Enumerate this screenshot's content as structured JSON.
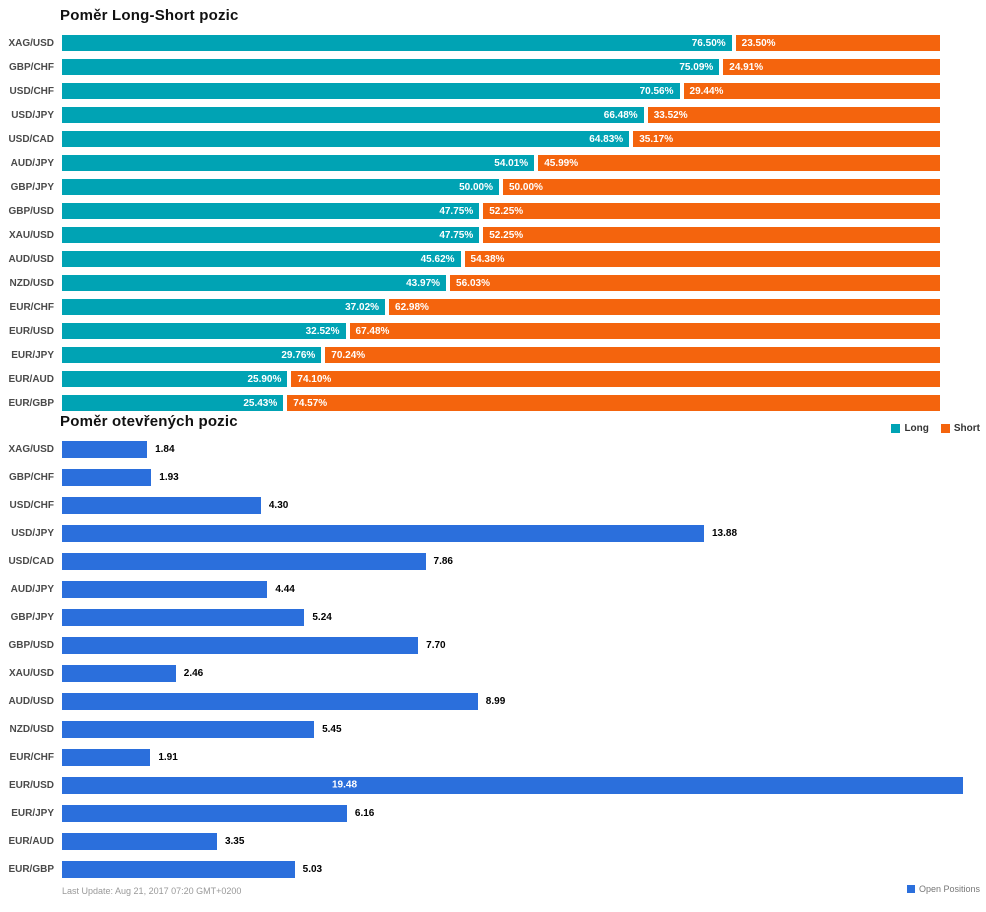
{
  "page": {
    "footer": "Last Update: Aug 21, 2017 07:20 GMT+0200"
  },
  "colors": {
    "long": "#00A3B4",
    "short": "#F4640D",
    "open_positions": "#2B6FDC"
  },
  "chart_data": [
    {
      "type": "bar",
      "title": "Poměr Long-Short pozic",
      "stacked": true,
      "unit": "%",
      "xlim": [
        0,
        100
      ],
      "grid": false,
      "legend_position": "bottom-right",
      "categories": [
        "XAG/USD",
        "GBP/CHF",
        "USD/CHF",
        "USD/JPY",
        "USD/CAD",
        "AUD/JPY",
        "GBP/JPY",
        "GBP/USD",
        "XAU/USD",
        "AUD/USD",
        "NZD/USD",
        "EUR/CHF",
        "EUR/USD",
        "EUR/JPY",
        "EUR/AUD",
        "EUR/GBP"
      ],
      "series": [
        {
          "name": "Long",
          "color_key": "long",
          "values": [
            76.5,
            75.09,
            70.56,
            66.48,
            64.83,
            54.01,
            50.0,
            47.75,
            47.75,
            45.62,
            43.97,
            37.02,
            32.52,
            29.76,
            25.9,
            25.43
          ]
        },
        {
          "name": "Short",
          "color_key": "short",
          "values": [
            23.5,
            24.91,
            29.44,
            33.52,
            35.17,
            45.99,
            50.0,
            52.25,
            52.25,
            54.38,
            56.03,
            62.98,
            67.48,
            70.24,
            74.1,
            74.57
          ]
        }
      ]
    },
    {
      "type": "bar",
      "title": "Poměr otevřených pozic",
      "stacked": false,
      "xlim": [
        0,
        19.48
      ],
      "grid": false,
      "legend_position": "bottom-right",
      "categories": [
        "XAG/USD",
        "GBP/CHF",
        "USD/CHF",
        "USD/JPY",
        "USD/CAD",
        "AUD/JPY",
        "GBP/JPY",
        "GBP/USD",
        "XAU/USD",
        "AUD/USD",
        "NZD/USD",
        "EUR/CHF",
        "EUR/USD",
        "EUR/JPY",
        "EUR/AUD",
        "EUR/GBP"
      ],
      "series": [
        {
          "name": "Open Positions",
          "color_key": "open_positions",
          "values": [
            1.84,
            1.93,
            4.3,
            13.88,
            7.86,
            4.44,
            5.24,
            7.7,
            2.46,
            8.99,
            5.45,
            1.91,
            19.48,
            6.16,
            3.35,
            5.03
          ]
        }
      ]
    }
  ]
}
